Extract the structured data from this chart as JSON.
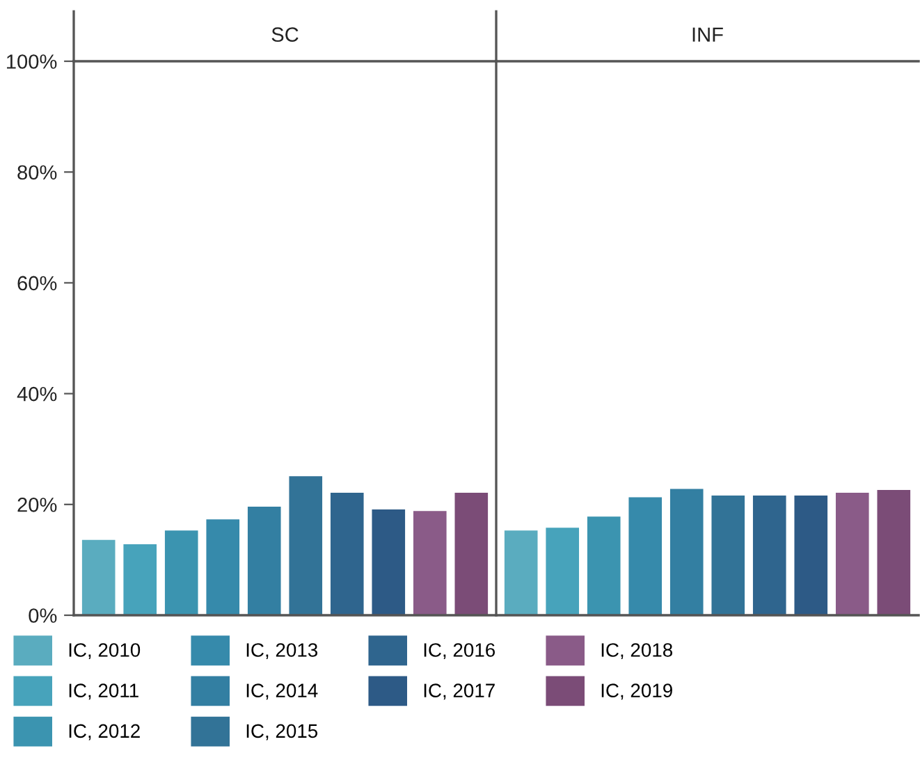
{
  "chart_data": {
    "type": "bar",
    "categories": [
      "SC",
      "INF"
    ],
    "ylim": [
      0,
      100
    ],
    "yticks": [
      {
        "value": 0,
        "label": "0%"
      },
      {
        "value": 20,
        "label": "20%"
      },
      {
        "value": 40,
        "label": "40%"
      },
      {
        "value": 60,
        "label": "60%"
      },
      {
        "value": 80,
        "label": "80%"
      },
      {
        "value": 100,
        "label": "100%"
      }
    ],
    "legend": "bottom",
    "series": [
      {
        "name": "IC, 2010",
        "color": "#5aacbf",
        "values": [
          13.6,
          15.3
        ]
      },
      {
        "name": "IC, 2011",
        "color": "#47a3bb",
        "values": [
          12.8,
          15.8
        ]
      },
      {
        "name": "IC, 2012",
        "color": "#3b94b0",
        "values": [
          15.3,
          17.8
        ]
      },
      {
        "name": "IC, 2013",
        "color": "#368aab",
        "values": [
          17.3,
          21.3
        ]
      },
      {
        "name": "IC, 2014",
        "color": "#337fa2",
        "values": [
          19.6,
          22.8
        ]
      },
      {
        "name": "IC, 2015",
        "color": "#327397",
        "values": [
          25.1,
          21.6
        ]
      },
      {
        "name": "IC, 2016",
        "color": "#2f658e",
        "values": [
          22.1,
          21.6
        ]
      },
      {
        "name": "IC, 2017",
        "color": "#2d5a86",
        "values": [
          19.1,
          21.6
        ]
      },
      {
        "name": "IC, 2018",
        "color": "#8a5b88",
        "values": [
          18.8,
          22.1
        ]
      },
      {
        "name": "IC, 2019",
        "color": "#7b4c77",
        "values": [
          22.1,
          22.6
        ]
      }
    ]
  }
}
